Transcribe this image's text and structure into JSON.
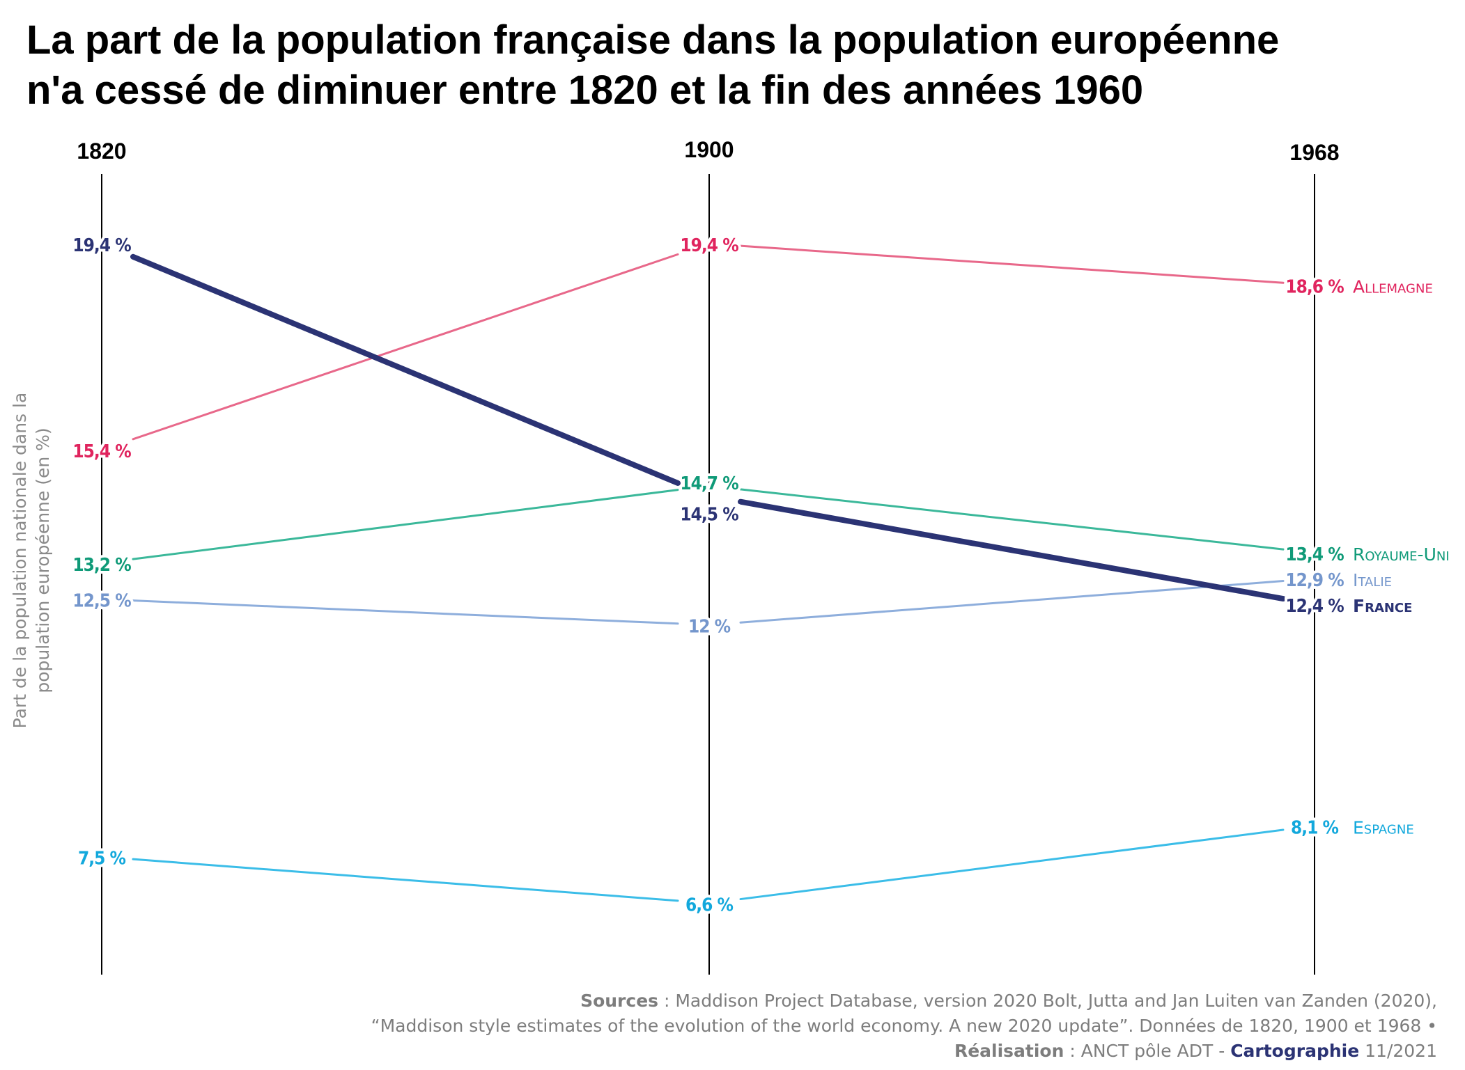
{
  "title": {
    "line1": "La part de la population française dans la population européenne",
    "line2": "n'a cessé de diminuer entre 1820 et la fin des années 1960"
  },
  "y_axis_label": {
    "line1": "Part de la population nationale dans la",
    "line2": "population européenne (en %)"
  },
  "source": {
    "sources_label": "Sources",
    "line1_text": " : Maddison Project Database, version 2020 Bolt, Jutta and Jan Luiten van Zanden (2020),",
    "line2_text": "“Maddison style estimates of the evolution of the world economy. A new 2020 update”. Données de 1820, 1900 et 1968 •",
    "realisation_label": "Réalisation",
    "realisation_text": " : ANCT pôle ADT - ",
    "carto_label": "Cartographie",
    "date": " 11/2021"
  },
  "chart_data": {
    "type": "line",
    "subtype": "slope",
    "x": [
      "1820",
      "1900",
      "1968"
    ],
    "unit": "%",
    "series": [
      {
        "name": "Allemagne",
        "values": [
          15.4,
          19.4,
          18.6
        ],
        "labels": [
          "15,4 %",
          "19,4 %",
          "18,6 %"
        ],
        "color": "#e8688a",
        "label_color": "#e0245e",
        "emphasis": false
      },
      {
        "name": "France",
        "values": [
          19.4,
          14.5,
          12.4
        ],
        "labels": [
          "19,4 %",
          "14,5 %",
          "12,4 %"
        ],
        "color": "#2b3374",
        "label_color": "#2b3374",
        "emphasis": true
      },
      {
        "name": "Royaume-Uni",
        "values": [
          13.2,
          14.7,
          13.4
        ],
        "labels": [
          "13,2 %",
          "14,7 %",
          "13,4 %"
        ],
        "color": "#3bb89a",
        "label_color": "#0f9a78",
        "emphasis": false
      },
      {
        "name": "Italie",
        "values": [
          12.5,
          12.0,
          12.9
        ],
        "labels": [
          "12,5 %",
          "12 %",
          "12,9 %"
        ],
        "color": "#8eaedc",
        "label_color": "#7496cc",
        "emphasis": false
      },
      {
        "name": "Espagne",
        "values": [
          7.5,
          6.6,
          8.1
        ],
        "labels": [
          "7,5 %",
          "6,6 %",
          "8,1 %"
        ],
        "color": "#3bbde8",
        "label_color": "#12a8dc",
        "emphasis": false
      }
    ],
    "legend": "end-of-line labels"
  }
}
